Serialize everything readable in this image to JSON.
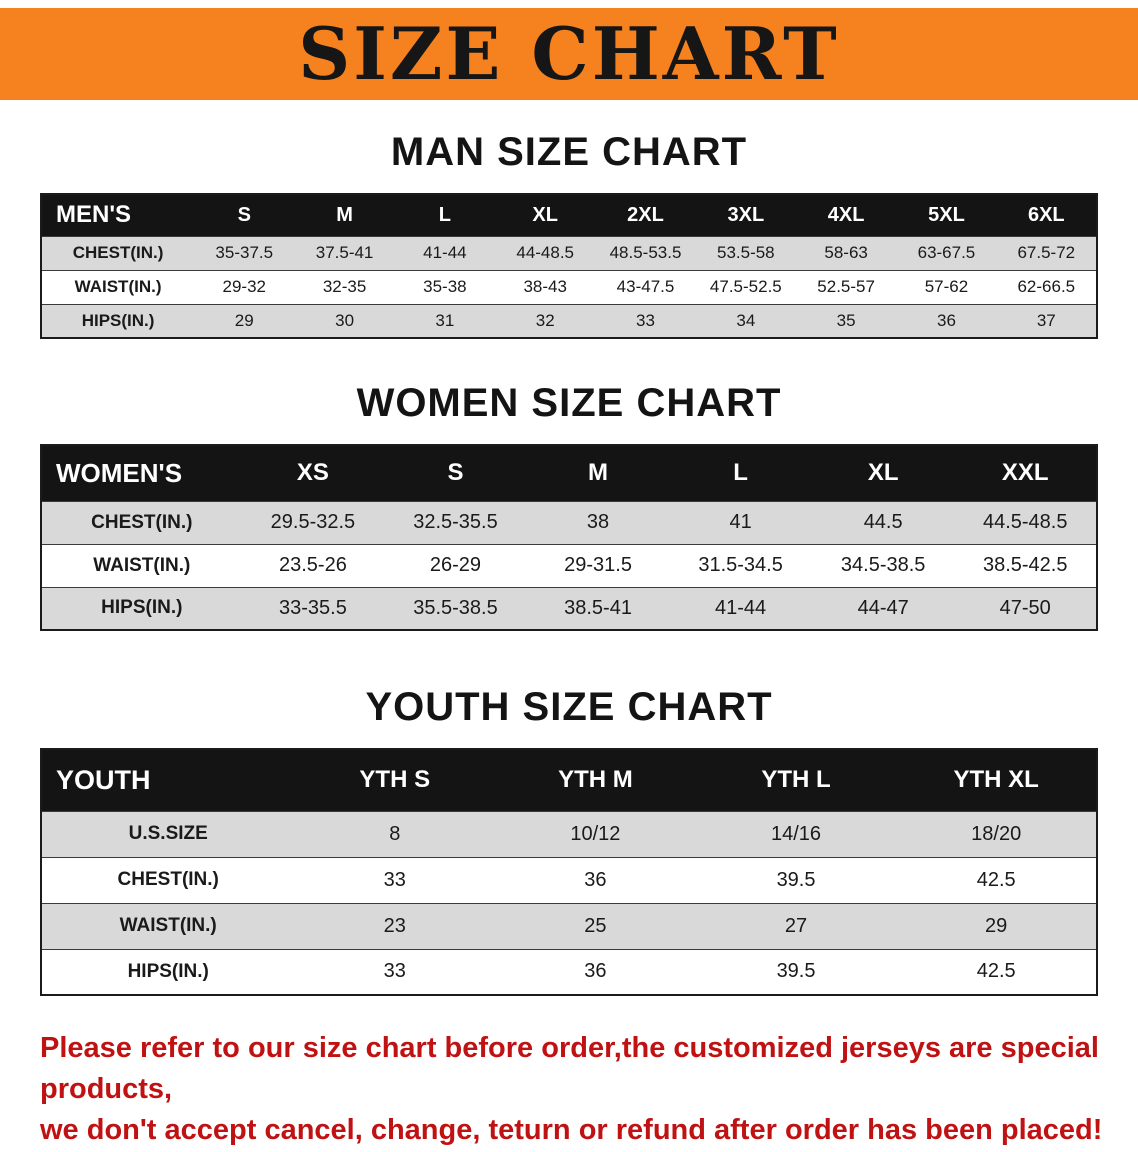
{
  "banner": {
    "title": "SIZE CHART",
    "bg_color": "#f5821f",
    "text_color": "#161616"
  },
  "sections": [
    {
      "heading": "MAN SIZE CHART",
      "table": {
        "header": [
          "MEN'S",
          "S",
          "M",
          "L",
          "XL",
          "2XL",
          "3XL",
          "4XL",
          "5XL",
          "6XL"
        ],
        "rows": [
          [
            "CHEST(IN.)",
            "35-37.5",
            "37.5-41",
            "41-44",
            "44-48.5",
            "48.5-53.5",
            "53.5-58",
            "58-63",
            "63-67.5",
            "67.5-72"
          ],
          [
            "WAIST(IN.)",
            "29-32",
            "32-35",
            "35-38",
            "38-43",
            "43-47.5",
            "47.5-52.5",
            "52.5-57",
            "57-62",
            "62-66.5"
          ],
          [
            "HIPS(IN.)",
            "29",
            "30",
            "31",
            "32",
            "33",
            "34",
            "35",
            "36",
            "37"
          ]
        ]
      }
    },
    {
      "heading": "WOMEN SIZE CHART",
      "table": {
        "header": [
          "WOMEN'S",
          "XS",
          "S",
          "M",
          "L",
          "XL",
          "XXL"
        ],
        "rows": [
          [
            "CHEST(IN.)",
            "29.5-32.5",
            "32.5-35.5",
            "38",
            "41",
            "44.5",
            "44.5-48.5"
          ],
          [
            "WAIST(IN.)",
            "23.5-26",
            "26-29",
            "29-31.5",
            "31.5-34.5",
            "34.5-38.5",
            "38.5-42.5"
          ],
          [
            "HIPS(IN.)",
            "33-35.5",
            "35.5-38.5",
            "38.5-41",
            "41-44",
            "44-47",
            "47-50"
          ]
        ]
      }
    },
    {
      "heading": "YOUTH SIZE CHART",
      "table": {
        "header": [
          "YOUTH",
          "YTH S",
          "YTH M",
          "YTH L",
          "YTH XL"
        ],
        "rows": [
          [
            "U.S.SIZE",
            "8",
            "10/12",
            "14/16",
            "18/20"
          ],
          [
            "CHEST(IN.)",
            "33",
            "36",
            "39.5",
            "42.5"
          ],
          [
            "WAIST(IN.)",
            "23",
            "25",
            "27",
            "29"
          ],
          [
            "HIPS(IN.)",
            "33",
            "36",
            "39.5",
            "42.5"
          ]
        ]
      }
    }
  ],
  "footer": {
    "line1": "Please refer to our size chart before order,the customized jerseys are special products,",
    "line2": "we don't accept cancel, change, teturn or refund after order has been placed!",
    "text_color": "#c01212"
  },
  "colors": {
    "banner_orange": "#f5821f",
    "header_black": "#141414",
    "stripe_gray": "#d9d9d9",
    "note_red": "#c01212"
  }
}
